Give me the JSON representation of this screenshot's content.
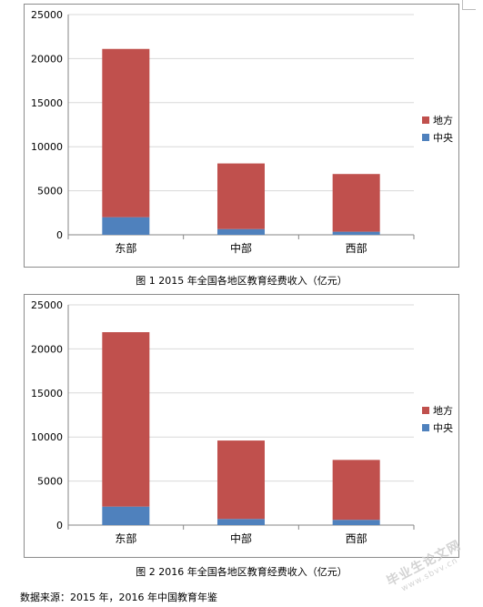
{
  "charts": [
    {
      "caption": "图 1 2015 年全国各地区教育经费收入（亿元）",
      "chart_data": {
        "type": "bar",
        "stacked": true,
        "categories": [
          "东部",
          "中部",
          "西部"
        ],
        "series": [
          {
            "name": "中央",
            "color": "#4f81bd",
            "values": [
              2000,
              650,
              350
            ]
          },
          {
            "name": "地方",
            "color": "#c0504d",
            "values": [
              19100,
              7450,
              6550
            ]
          }
        ],
        "ylim": [
          0,
          25000
        ],
        "yticks": [
          0,
          5000,
          10000,
          15000,
          20000,
          25000
        ],
        "legend_position": "right",
        "grid": true
      }
    },
    {
      "caption": "图 2 2016 年全国各地区教育经费收入（亿元）",
      "chart_data": {
        "type": "bar",
        "stacked": true,
        "categories": [
          "东部",
          "中部",
          "西部"
        ],
        "series": [
          {
            "name": "中央",
            "color": "#4f81bd",
            "values": [
              2100,
              700,
              600
            ]
          },
          {
            "name": "地方",
            "color": "#c0504d",
            "values": [
              19800,
              8900,
              6800
            ]
          }
        ],
        "ylim": [
          0,
          25000
        ],
        "yticks": [
          0,
          5000,
          10000,
          15000,
          20000,
          25000
        ],
        "legend_position": "right",
        "grid": true
      }
    }
  ],
  "source_note": "数据来源：2015 年，2016 年中国教育年鉴",
  "watermark": {
    "text": "毕业生论文网",
    "url": "www.sbvv.cn"
  }
}
